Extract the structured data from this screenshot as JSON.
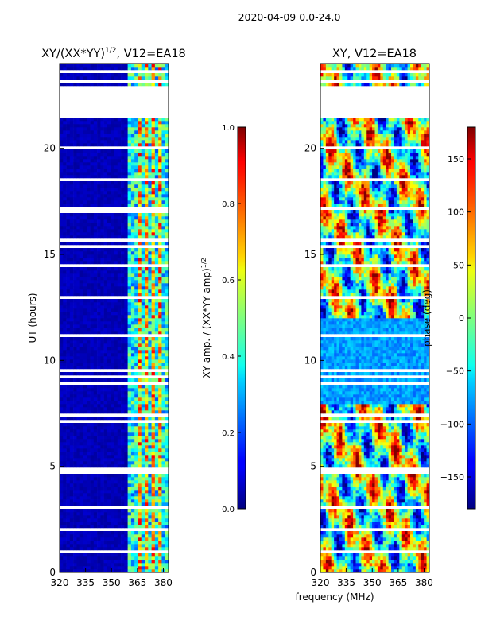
{
  "figure": {
    "suptitle": "2020-04-09 0.0-24.0",
    "xlabel": "frequency (MHz)"
  },
  "chart_data": [
    {
      "type": "heatmap",
      "title": "XY/(XX*YY)",
      "title_sup": "1/2",
      "title_suffix": ", V12=EA18",
      "xlabel": "",
      "ylabel": "UT (hours)",
      "xlim": [
        320,
        383
      ],
      "ylim": [
        0,
        24
      ],
      "xticks": [
        320,
        335,
        350,
        365,
        380
      ],
      "yticks": [
        0,
        5,
        10,
        15,
        20
      ],
      "missing_data_hours": [
        [
          21.4,
          22.9
        ],
        [
          16.9,
          17.2
        ]
      ],
      "strong_channels_mhz": [
        366,
        370,
        375,
        379
      ],
      "colorbar": {
        "label": "XY amp. / (XX*YY amp)",
        "label_sup": "1/2",
        "range": [
          0.0,
          1.0
        ],
        "ticks": [
          "0.0",
          "0.2",
          "0.4",
          "0.6",
          "0.8",
          "1.0"
        ],
        "colormap": "jet"
      }
    },
    {
      "type": "heatmap",
      "title": "XY, V12=EA18",
      "xlabel": "",
      "ylabel": "",
      "xlim": [
        320,
        383
      ],
      "ylim": [
        0,
        24
      ],
      "xticks": [
        320,
        335,
        350,
        365,
        380
      ],
      "yticks": [
        0,
        5,
        10,
        15,
        20
      ],
      "missing_data_hours": [
        [
          21.4,
          22.9
        ]
      ],
      "colorbar": {
        "label": "phase (deg)",
        "range": [
          -180,
          180
        ],
        "ticks": [
          "−150",
          "−100",
          "−50",
          "0",
          "50",
          "100",
          "150"
        ],
        "colormap": "jet"
      }
    }
  ],
  "colors": {
    "axis": "#000000",
    "background": "#ffffff"
  }
}
